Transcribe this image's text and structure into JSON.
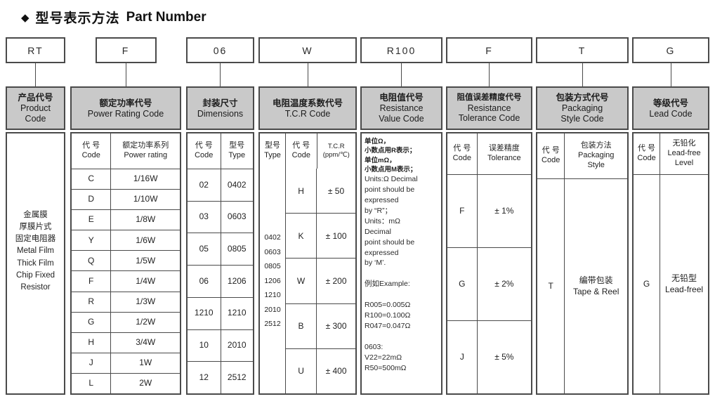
{
  "title": {
    "icon": "◆",
    "cn": "型号表示方法",
    "en": "Part Number"
  },
  "part_code_boxes": [
    "RT",
    "F",
    "06",
    "W",
    "R100",
    "F",
    "T",
    "G"
  ],
  "columns": {
    "product": {
      "header_cn": "产品代号",
      "header_en": "Product\nCode",
      "body": "金属膜\n厚膜片式\n固定电阻器\nMetal Film\nThick Film\nChip Fixed\nResistor"
    },
    "power": {
      "header_cn": "额定功率代号",
      "header_en": "Power Rating Code",
      "sub_code": "代 号\nCode",
      "sub_value": "额定功率系列\nPower rating",
      "rows": [
        {
          "code": "C",
          "value": "1/16W"
        },
        {
          "code": "D",
          "value": "1/10W"
        },
        {
          "code": "E",
          "value": "1/8W"
        },
        {
          "code": "Y",
          "value": "1/6W"
        },
        {
          "code": "Q",
          "value": "1/5W"
        },
        {
          "code": "F",
          "value": "1/4W"
        },
        {
          "code": "R",
          "value": "1/3W"
        },
        {
          "code": "G",
          "value": "1/2W"
        },
        {
          "code": "H",
          "value": "3/4W"
        },
        {
          "code": "J",
          "value": "1W"
        },
        {
          "code": "L",
          "value": "2W"
        }
      ]
    },
    "dimensions": {
      "header_cn": "封装尺寸",
      "header_en": "Dimensions",
      "sub_code": "代 号\nCode",
      "sub_type": "型号\nType",
      "rows": [
        {
          "code": "02",
          "type": "0402"
        },
        {
          "code": "03",
          "type": "0603"
        },
        {
          "code": "05",
          "type": "0805"
        },
        {
          "code": "06",
          "type": "1206"
        },
        {
          "code": "1210",
          "type": "1210"
        },
        {
          "code": "10",
          "type": "2010"
        },
        {
          "code": "12",
          "type": "2512"
        }
      ]
    },
    "tcr": {
      "header_cn": "电阻温度系数代号",
      "header_en": "T.C.R Code",
      "sub_type": "型号\nType",
      "sub_code": "代 号\nCode",
      "sub_tcr": "T.C.R\n(ppm/℃)",
      "types": "0402\n0603\n0805\n1206\n1210\n2010\n2512",
      "rows": [
        {
          "code": "H",
          "value": "± 50"
        },
        {
          "code": "K",
          "value": "± 100"
        },
        {
          "code": "W",
          "value": "± 200"
        },
        {
          "code": "B",
          "value": "± 300"
        },
        {
          "code": "U",
          "value": "± 400"
        }
      ]
    },
    "resistance_value": {
      "header_cn": "电阻值代号",
      "header_en": "Resistance\nValue Code",
      "note_cn": "单位Ω，\n小数点用R表示；\n单位mΩ，\n小数点用M表示；",
      "note_en": "Units:Ω Decimal\npoint should be\nexpressed\nby “R”；\nUnits：mΩ\nDecimal\npoint should be\nexpressed\nby ‘M’.\n\n例如Example:\n\nR005=0.005Ω\nR100=0.100Ω\nR047=0.047Ω\n\n0603:\nV22=22mΩ\nR50=500mΩ"
    },
    "tolerance": {
      "header_cn": "阻值误差精度代号",
      "header_en": "Resistance\nTolerance Code",
      "sub_code": "代 号\nCode",
      "sub_value": "误差精度\nTolerance",
      "rows": [
        {
          "code": "F",
          "value": "± 1%"
        },
        {
          "code": "G",
          "value": "± 2%"
        },
        {
          "code": "J",
          "value": "± 5%"
        }
      ]
    },
    "packaging": {
      "header_cn": "包装方式代号",
      "header_en": "Packaging\nStyle Code",
      "sub_code": "代 号\nCode",
      "sub_style": "包装方法\nPackaging\nStyle",
      "row_code": "T",
      "row_style": "编带包装\nTape & Reel"
    },
    "lead": {
      "header_cn": "等级代号",
      "header_en": "Lead Code",
      "sub_code": "代 号\nCode",
      "sub_level": "无铅化\nLead-free\nLevel",
      "row_code": "G",
      "row_level": "无铅型\nLead-freel"
    }
  }
}
